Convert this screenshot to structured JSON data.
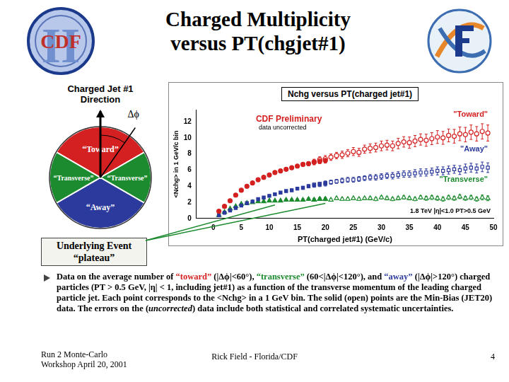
{
  "slide": {
    "title": [
      "Charged Multiplicity",
      "versus PT(chgjet#1)"
    ],
    "logo_text": "CDF",
    "logo_numeral": "II",
    "diagram": {
      "heading": [
        "Charged Jet #1",
        "Direction"
      ],
      "angle_label": "Δϕ",
      "toward": "“Toward”",
      "transverse": "“Transverse”",
      "away": "“Away”"
    },
    "callout": [
      "Underlying Event",
      "“plateau”"
    ],
    "caption": [
      {
        "text": "Data on the average number of "
      },
      {
        "text": "“toward”",
        "color": "#d42020"
      },
      {
        "text": " (|Δϕ|<60°), "
      },
      {
        "text": "“transverse”",
        "color": "#1c8a2e"
      },
      {
        "text": " (60<|Δϕ|<120°), and "
      },
      {
        "text": "“away”",
        "color": "#2b3a9c"
      },
      {
        "text": " (|Δϕ|>120°) charged particles (PT > 0.5 GeV, |η| < 1, including jet#1) as a function of the transverse momentum of the leading charged particle jet. Each point corresponds to the <Nchg> in a 1 GeV bin. The solid (open) points are the Min-Bias (JET20) data. The errors on the ("
      },
      {
        "text": "uncorrected",
        "style": "italic"
      },
      {
        "text": ") data include both statistical and correlated systematic uncertainties."
      }
    ],
    "footer": {
      "left": [
        "Run 2 Monte-Carlo",
        "Workshop April 20, 2001"
      ],
      "center": "Rick Field - Florida/CDF",
      "page": 4
    }
  },
  "chart_data": {
    "type": "scatter",
    "title": "Nchg versus PT(charged jet#1)",
    "x_label": "PT(charged jet#1) (GeV/c)",
    "y_label": "<Nchg> in 1 GeV/c bin",
    "xlim": [
      -3,
      50
    ],
    "xticks": [
      0,
      5,
      10,
      15,
      20,
      25,
      30,
      35,
      40,
      45,
      50
    ],
    "ylim": [
      0,
      13.5
    ],
    "yticks": [
      0,
      2,
      4,
      6,
      8,
      10,
      12
    ],
    "grid": false,
    "annotations": [
      {
        "text": "CDF Preliminary",
        "color": "#d42020"
      },
      {
        "text": "data uncorrected"
      },
      {
        "text": "1.8 TeV |η|<1.0 PT>0.5 GeV"
      }
    ],
    "series": [
      {
        "name": "\"Toward\"",
        "color": "#d42020",
        "marker": "circle",
        "x": [
          1,
          2,
          3,
          4,
          5,
          6,
          7,
          8,
          9,
          10,
          11,
          12,
          13,
          14,
          15,
          16,
          17,
          18,
          19,
          20
        ],
        "values": [
          0.9,
          1.5,
          2.2,
          2.9,
          3.5,
          4.0,
          4.4,
          4.8,
          5.1,
          5.4,
          5.7,
          5.9,
          6.1,
          6.3,
          6.5,
          6.7,
          6.8,
          7.0,
          7.1,
          7.2
        ],
        "errors": [
          0.05,
          0.05,
          0.06,
          0.06,
          0.07,
          0.07,
          0.08,
          0.09,
          0.1,
          0.1,
          0.12,
          0.13,
          0.15,
          0.17,
          0.2,
          0.22,
          0.25,
          0.28,
          0.3,
          0.33
        ]
      },
      {
        "name": "\"Toward\"",
        "color": "#d42020",
        "marker": "circle_open",
        "x": [
          18,
          19,
          20,
          21,
          22,
          23,
          24,
          25,
          26,
          27,
          28,
          29,
          30,
          31,
          32,
          33,
          34,
          35,
          36,
          37,
          38,
          39,
          40,
          41,
          42,
          43,
          44,
          45,
          46,
          47,
          48,
          49
        ],
        "values": [
          7.0,
          7.3,
          7.4,
          7.6,
          7.8,
          7.9,
          8.1,
          8.3,
          8.2,
          8.6,
          8.7,
          8.8,
          9.0,
          9.1,
          9.0,
          9.3,
          9.5,
          9.4,
          9.6,
          9.8,
          9.7,
          9.9,
          10.1,
          10.0,
          10.3,
          10.2,
          10.5,
          10.4,
          10.7,
          10.5,
          10.8,
          10.6
        ],
        "errors": [
          0.35,
          0.35,
          0.4,
          0.4,
          0.4,
          0.45,
          0.45,
          0.5,
          0.5,
          0.5,
          0.55,
          0.55,
          0.6,
          0.6,
          0.6,
          0.65,
          0.65,
          0.7,
          0.7,
          0.7,
          0.75,
          0.75,
          0.8,
          0.8,
          0.8,
          0.85,
          0.85,
          0.9,
          0.9,
          0.9,
          0.95,
          1.0
        ]
      },
      {
        "name": "\"Away\"",
        "color": "#2b3a9c",
        "marker": "square",
        "x": [
          1,
          2,
          3,
          4,
          5,
          6,
          7,
          8,
          9,
          10,
          11,
          12,
          13,
          14,
          15,
          16,
          17,
          18,
          19,
          20
        ],
        "values": [
          0.4,
          0.7,
          1.0,
          1.3,
          1.6,
          1.9,
          2.1,
          2.4,
          2.6,
          2.8,
          3.0,
          3.2,
          3.4,
          3.5,
          3.7,
          3.8,
          4.0,
          4.1,
          4.2,
          4.3
        ],
        "errors": [
          0.04,
          0.05,
          0.05,
          0.06,
          0.06,
          0.07,
          0.08,
          0.08,
          0.09,
          0.1,
          0.11,
          0.12,
          0.14,
          0.15,
          0.17,
          0.19,
          0.21,
          0.23,
          0.25,
          0.28
        ]
      },
      {
        "name": "\"Away\"",
        "color": "#2b3a9c",
        "marker": "square_open",
        "x": [
          18,
          19,
          20,
          21,
          22,
          23,
          24,
          25,
          26,
          27,
          28,
          29,
          30,
          31,
          32,
          33,
          34,
          35,
          36,
          37,
          38,
          39,
          40,
          41,
          42,
          43,
          44,
          45,
          46,
          47,
          48,
          49
        ],
        "values": [
          4.2,
          4.3,
          4.4,
          4.5,
          4.6,
          4.7,
          4.8,
          4.8,
          4.9,
          5.0,
          5.1,
          5.1,
          5.2,
          5.3,
          5.3,
          5.4,
          5.5,
          5.5,
          5.6,
          5.7,
          5.7,
          5.8,
          5.9,
          5.9,
          6.0,
          6.1,
          6.0,
          6.2,
          6.3,
          6.2,
          6.4,
          6.3
        ],
        "errors": [
          0.2,
          0.2,
          0.25,
          0.25,
          0.25,
          0.3,
          0.3,
          0.3,
          0.3,
          0.3,
          0.35,
          0.35,
          0.35,
          0.35,
          0.4,
          0.4,
          0.4,
          0.4,
          0.45,
          0.45,
          0.45,
          0.45,
          0.5,
          0.5,
          0.5,
          0.5,
          0.55,
          0.55,
          0.55,
          0.55,
          0.6,
          0.6
        ]
      },
      {
        "name": "\"Transverse\"",
        "color": "#1c8a2e",
        "marker": "triangle",
        "x": [
          1,
          2,
          3,
          4,
          5,
          6,
          7,
          8,
          9,
          10,
          11,
          12,
          13,
          14,
          15,
          16,
          17,
          18,
          19,
          20
        ],
        "values": [
          0.4,
          0.8,
          1.2,
          1.5,
          1.8,
          1.9,
          2.0,
          2.1,
          2.1,
          2.2,
          2.2,
          2.2,
          2.3,
          2.3,
          2.3,
          2.3,
          2.4,
          2.3,
          2.4,
          2.4
        ],
        "errors": [
          0.03,
          0.04,
          0.05,
          0.05,
          0.06,
          0.06,
          0.07,
          0.07,
          0.08,
          0.08,
          0.09,
          0.1,
          0.11,
          0.12,
          0.13,
          0.14,
          0.15,
          0.16,
          0.18,
          0.2
        ]
      },
      {
        "name": "\"Transverse\"",
        "color": "#1c8a2e",
        "marker": "triangle_open",
        "x": [
          18,
          19,
          20,
          21,
          22,
          23,
          24,
          25,
          26,
          27,
          28,
          29,
          30,
          31,
          32,
          33,
          34,
          35,
          36,
          37,
          38,
          39,
          40,
          41,
          42,
          43,
          44,
          45,
          46,
          47,
          48,
          49
        ],
        "values": [
          2.3,
          2.4,
          2.4,
          2.3,
          2.5,
          2.4,
          2.4,
          2.5,
          2.4,
          2.5,
          2.5,
          2.4,
          2.6,
          2.5,
          2.4,
          2.5,
          2.6,
          2.5,
          2.4,
          2.6,
          2.5,
          2.6,
          2.5,
          2.4,
          2.6,
          2.5,
          2.7,
          2.5,
          2.6,
          2.4,
          2.6,
          2.5
        ],
        "errors": [
          0.15,
          0.15,
          0.15,
          0.15,
          0.15,
          0.15,
          0.15,
          0.15,
          0.15,
          0.15,
          0.2,
          0.2,
          0.2,
          0.2,
          0.2,
          0.2,
          0.2,
          0.2,
          0.2,
          0.2,
          0.25,
          0.25,
          0.25,
          0.25,
          0.25,
          0.25,
          0.25,
          0.25,
          0.25,
          0.25,
          0.3,
          0.3
        ]
      }
    ]
  }
}
